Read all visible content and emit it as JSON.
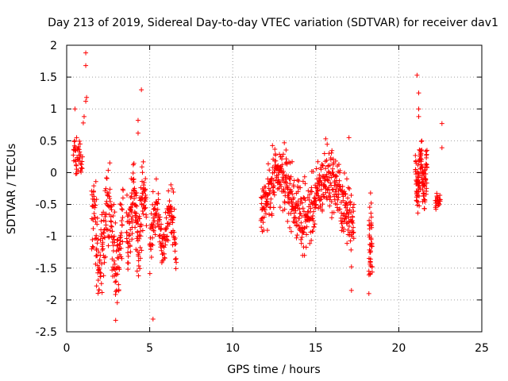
{
  "chart_data": {
    "type": "scatter",
    "title": "Day 213 of 2019, Sidereal Day-to-day VTEC variation (SDTVAR) for receiver dav1",
    "xlabel": "GPS time / hours",
    "ylabel": "SDTVAR / TECUs",
    "xlim": [
      0,
      25
    ],
    "ylim": [
      -2.5,
      2
    ],
    "xticks": [
      0,
      5,
      10,
      15,
      20,
      25
    ],
    "yticks": [
      -2.5,
      -2,
      -1.5,
      -1,
      -0.5,
      0,
      0.5,
      1,
      1.5,
      2
    ],
    "grid": true,
    "marker": "+",
    "series_color": "#ff0000",
    "clusters": [
      {
        "name": "0.4-0.9h",
        "x_range": [
          0.4,
          0.95
        ],
        "y_min": -0.15,
        "y_max": 0.65,
        "n": 40
      },
      {
        "name": "1.5-3.4h",
        "x_range": [
          1.5,
          3.4
        ],
        "y_min": -2.3,
        "y_max": 0.25,
        "n": 200
      },
      {
        "name": "3.6-4.8h",
        "x_range": [
          3.6,
          4.8
        ],
        "y_min": -1.7,
        "y_max": 0.45,
        "n": 150
      },
      {
        "name": "5.0-6.6h",
        "x_range": [
          5.0,
          6.6
        ],
        "y_min": -1.6,
        "y_max": -0.1,
        "n": 150
      },
      {
        "name": "11.7-17.3h",
        "x_range": [
          11.7,
          17.3
        ],
        "y_min": -1.3,
        "y_max": 0.5,
        "n": 550
      },
      {
        "name": "18.2-18.4h",
        "x_range": [
          18.2,
          18.4
        ],
        "y_min": -1.9,
        "y_max": -0.3,
        "n": 40
      },
      {
        "name": "21.0-21.7h",
        "x_range": [
          21.0,
          21.7
        ],
        "y_min": -0.75,
        "y_max": 0.6,
        "n": 120
      },
      {
        "name": "22.2-22.5h",
        "x_range": [
          22.2,
          22.5
        ],
        "y_min": -0.6,
        "y_max": -0.3,
        "n": 25
      }
    ],
    "outliers": [
      {
        "x": 0.5,
        "y": 1.0
      },
      {
        "x": 1.15,
        "y": 1.88
      },
      {
        "x": 1.15,
        "y": 1.68
      },
      {
        "x": 1.2,
        "y": 1.18
      },
      {
        "x": 1.15,
        "y": 1.12
      },
      {
        "x": 0.6,
        "y": 0.55
      },
      {
        "x": 0.55,
        "y": 0.35
      },
      {
        "x": 1.05,
        "y": 0.88
      },
      {
        "x": 1.0,
        "y": 0.78
      },
      {
        "x": 4.5,
        "y": 1.3
      },
      {
        "x": 4.3,
        "y": 0.82
      },
      {
        "x": 4.3,
        "y": 0.62
      },
      {
        "x": 5.2,
        "y": -2.3
      },
      {
        "x": 5.2,
        "y": -0.3
      },
      {
        "x": 2.95,
        "y": -2.32
      },
      {
        "x": 1.8,
        "y": -1.78
      },
      {
        "x": 1.8,
        "y": -0.42
      },
      {
        "x": 1.6,
        "y": -0.88
      },
      {
        "x": 21.1,
        "y": 1.53
      },
      {
        "x": 21.2,
        "y": 1.25
      },
      {
        "x": 21.2,
        "y": 1.0
      },
      {
        "x": 21.2,
        "y": 0.88
      },
      {
        "x": 22.6,
        "y": 0.77
      },
      {
        "x": 22.6,
        "y": 0.39
      },
      {
        "x": 15.6,
        "y": 0.53
      },
      {
        "x": 17.0,
        "y": 0.55
      },
      {
        "x": 17.15,
        "y": -1.48
      },
      {
        "x": 17.15,
        "y": -1.85
      },
      {
        "x": 18.3,
        "y": -0.32
      },
      {
        "x": 18.2,
        "y": -1.9
      },
      {
        "x": 21.7,
        "y": 0.35
      }
    ]
  }
}
